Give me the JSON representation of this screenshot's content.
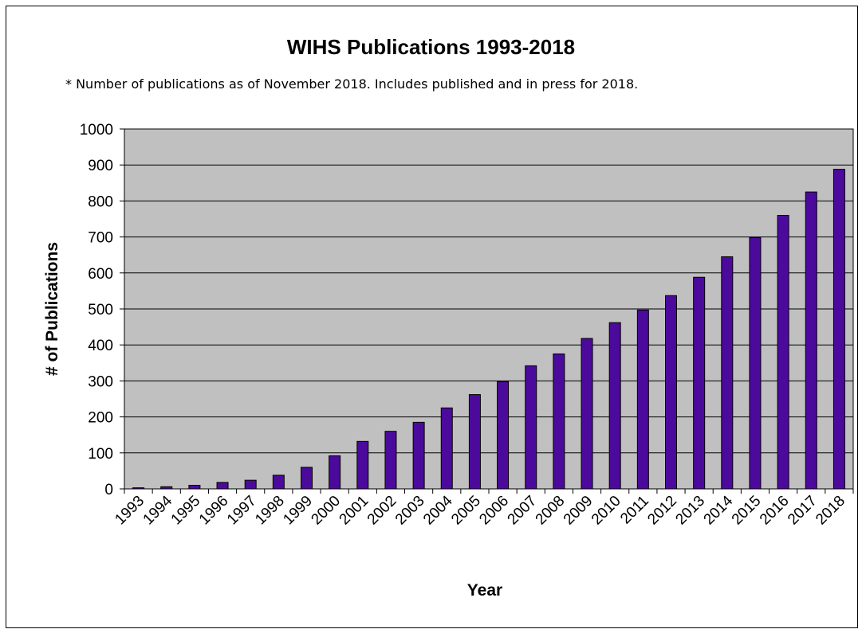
{
  "chart_data": {
    "type": "bar",
    "title": "WIHS Publications 1993-2018",
    "subtitle": "* Number of publications as of November 2018. Includes published and in press for 2018.",
    "xlabel": "Year",
    "ylabel": "# of Publications",
    "ylim": [
      0,
      1000
    ],
    "yticks": [
      0,
      100,
      200,
      300,
      400,
      500,
      600,
      700,
      800,
      900,
      1000
    ],
    "grid": true,
    "legend": "none",
    "categories": [
      "1993",
      "1994",
      "1995",
      "1996",
      "1997",
      "1998",
      "1999",
      "2000",
      "2001",
      "2002",
      "2003",
      "2004",
      "2005",
      "2006",
      "2007",
      "2008",
      "2009",
      "2010",
      "2011",
      "2012",
      "2013",
      "2014",
      "2015",
      "2016",
      "2017",
      "2018"
    ],
    "values": [
      3,
      6,
      10,
      18,
      24,
      38,
      60,
      92,
      132,
      160,
      185,
      225,
      262,
      298,
      342,
      375,
      418,
      462,
      497,
      537,
      588,
      645,
      698,
      760,
      825,
      888
    ],
    "colors": {
      "bar": "#4b0a9c",
      "plot_bg": "#c0c0c0",
      "grid": "#000000"
    }
  }
}
